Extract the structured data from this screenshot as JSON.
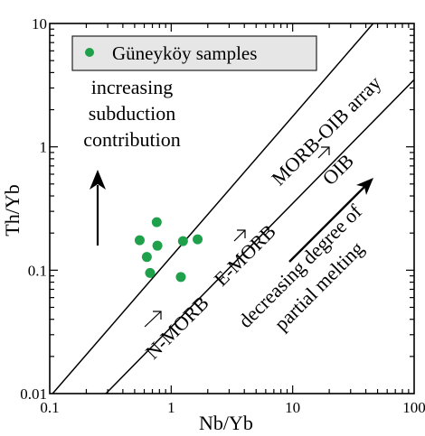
{
  "chart_data": {
    "type": "scatter",
    "xlabel": "Nb/Yb",
    "ylabel": "Th/Yb",
    "x_scale": "log",
    "y_scale": "log",
    "xlim": [
      0.1,
      100
    ],
    "ylim": [
      0.01,
      10
    ],
    "x_ticks": [
      {
        "value": 0.1,
        "label": "0.1"
      },
      {
        "value": 1,
        "label": "1"
      },
      {
        "value": 10,
        "label": "10"
      },
      {
        "value": 100,
        "label": "100"
      }
    ],
    "y_ticks": [
      {
        "value": 0.01,
        "label": "0.01"
      },
      {
        "value": 0.1,
        "label": "0.1"
      },
      {
        "value": 1,
        "label": "1"
      },
      {
        "value": 10,
        "label": "10"
      }
    ],
    "grid": false,
    "legend": {
      "placement": "top-left",
      "entries": [
        {
          "label": "Güneyköy samples",
          "color": "#1fa04a"
        }
      ]
    },
    "series": [
      {
        "name": "Güneyköy samples",
        "color": "#1fa04a",
        "points": [
          {
            "x": 0.55,
            "y": 0.175
          },
          {
            "x": 0.63,
            "y": 0.128
          },
          {
            "x": 0.67,
            "y": 0.095
          },
          {
            "x": 0.76,
            "y": 0.245
          },
          {
            "x": 0.77,
            "y": 0.158
          },
          {
            "x": 1.2,
            "y": 0.088
          },
          {
            "x": 1.25,
            "y": 0.172
          },
          {
            "x": 1.65,
            "y": 0.178
          }
        ]
      }
    ],
    "array_lines": [
      {
        "from": {
          "x": 0.1,
          "y": 0.0094
        },
        "to": {
          "x": 46,
          "y": 10
        }
      },
      {
        "from": {
          "x": 0.29,
          "y": 0.01
        },
        "to": {
          "x": 100,
          "y": 3.5
        }
      }
    ],
    "annotations": [
      {
        "id": "increasing",
        "lines": [
          "increasing",
          "subduction",
          "contribution"
        ]
      },
      {
        "id": "morb-oib-array",
        "text": "MORB-OIB array"
      },
      {
        "id": "n-morb",
        "text": "N-MORB"
      },
      {
        "id": "e-morb",
        "text": "E-MORB"
      },
      {
        "id": "oib",
        "text": "OIB"
      },
      {
        "id": "decreasing",
        "lines": [
          "decreasing degree of",
          "partial melting"
        ]
      }
    ]
  }
}
